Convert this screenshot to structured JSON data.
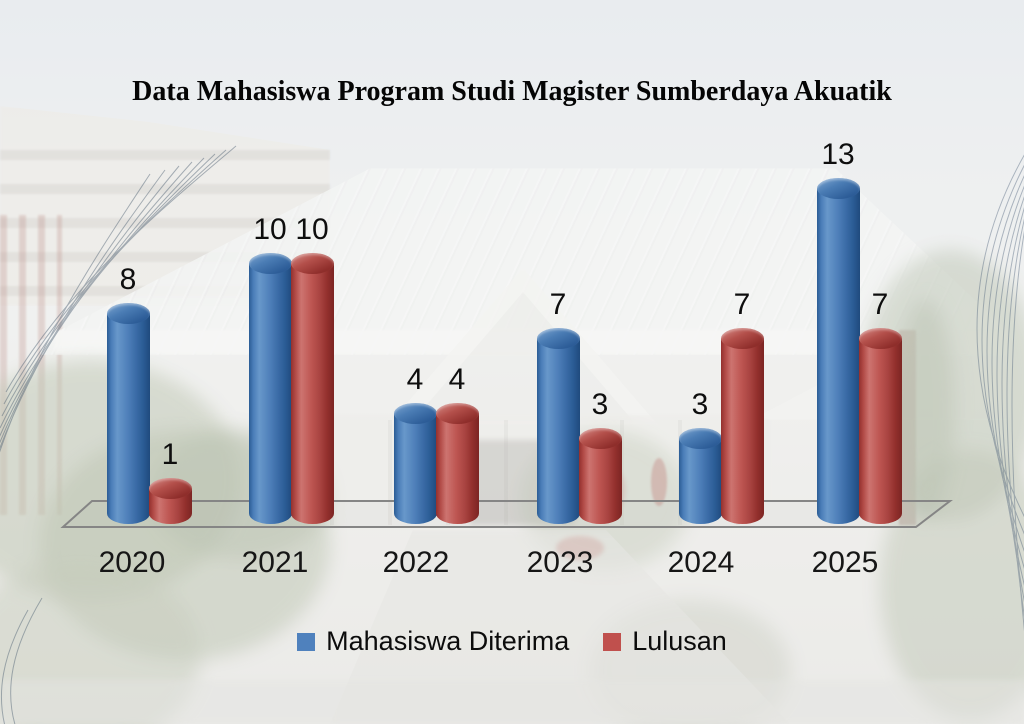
{
  "title": "Data Mahasiswa Program Studi Magister Sumberdaya Akuatik",
  "chart_data": {
    "type": "bar",
    "style": "3d-cylinder",
    "title": "Data Mahasiswa Program Studi Magister Sumberdaya Akuatik",
    "categories": [
      "2020",
      "2021",
      "2022",
      "2023",
      "2024",
      "2025"
    ],
    "series": [
      {
        "name": "Mahasiswa Diterima",
        "color": "#4F81BD",
        "values": [
          8,
          10,
          4,
          7,
          3,
          13
        ]
      },
      {
        "name": "Lulusan",
        "color": "#C0504D",
        "values": [
          1,
          10,
          4,
          3,
          7,
          7
        ]
      }
    ],
    "xlabel": "",
    "ylabel": "",
    "ylim": [
      0,
      13
    ],
    "grid": false,
    "data_labels": true,
    "legend_position": "bottom"
  }
}
